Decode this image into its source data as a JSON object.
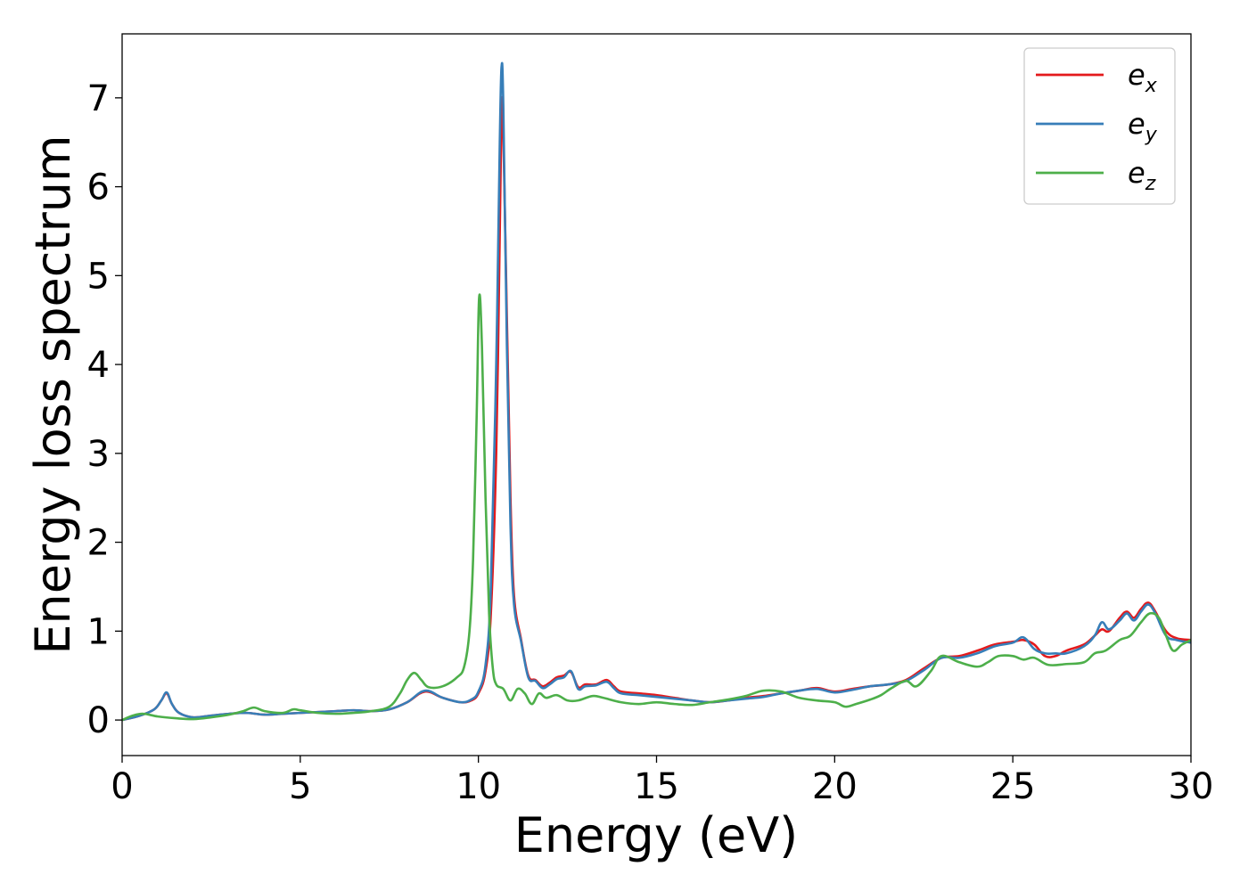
{
  "chart_data": {
    "type": "line",
    "title": "",
    "xlabel": "Energy (eV)",
    "ylabel": "Energy loss spectrum",
    "xlim": [
      0,
      30
    ],
    "ylim": [
      -0.4,
      7.72
    ],
    "xticks": [
      0,
      5,
      10,
      15,
      20,
      25,
      30
    ],
    "xtick_labels": [
      "0",
      "5",
      "10",
      "15",
      "20",
      "25",
      "30"
    ],
    "yticks": [
      0,
      1,
      2,
      3,
      4,
      5,
      6,
      7
    ],
    "ytick_labels": [
      "0",
      "1",
      "2",
      "3",
      "4",
      "5",
      "6",
      "7"
    ],
    "grid": false,
    "legend_position": "top-right",
    "series": [
      {
        "name": "e",
        "subscript": "x",
        "color": "#e41a1c",
        "x": [
          0,
          0.5,
          0.9,
          1.1,
          1.25,
          1.4,
          1.6,
          2.0,
          2.5,
          3.0,
          3.5,
          4.0,
          4.5,
          5.0,
          5.5,
          6.0,
          6.5,
          7.0,
          7.5,
          8.0,
          8.5,
          9.0,
          9.5,
          9.8,
          10.0,
          10.2,
          10.35,
          10.5,
          10.6,
          10.65,
          10.7,
          10.8,
          10.9,
          11.0,
          11.2,
          11.4,
          11.6,
          11.8,
          12.0,
          12.2,
          12.4,
          12.6,
          12.8,
          13.0,
          13.3,
          13.6,
          13.8,
          14.0,
          14.5,
          15.0,
          15.5,
          16.0,
          16.5,
          17.0,
          17.5,
          18.0,
          18.5,
          19.0,
          19.5,
          20.0,
          20.5,
          21.0,
          21.5,
          22.0,
          22.5,
          23.0,
          23.5,
          24.0,
          24.5,
          25.0,
          25.3,
          25.6,
          25.9,
          26.2,
          26.5,
          27.0,
          27.3,
          27.5,
          27.7,
          28.0,
          28.2,
          28.4,
          28.6,
          28.8,
          29.0,
          29.3,
          29.6,
          30.0
        ],
        "y": [
          0.0,
          0.05,
          0.12,
          0.22,
          0.3,
          0.18,
          0.08,
          0.03,
          0.05,
          0.07,
          0.08,
          0.06,
          0.07,
          0.08,
          0.09,
          0.1,
          0.11,
          0.1,
          0.12,
          0.2,
          0.32,
          0.25,
          0.2,
          0.22,
          0.3,
          0.55,
          1.2,
          3.0,
          5.5,
          6.9,
          6.6,
          4.5,
          2.5,
          1.4,
          0.9,
          0.5,
          0.45,
          0.38,
          0.42,
          0.48,
          0.5,
          0.54,
          0.37,
          0.4,
          0.4,
          0.45,
          0.38,
          0.32,
          0.3,
          0.28,
          0.25,
          0.22,
          0.2,
          0.22,
          0.25,
          0.27,
          0.3,
          0.33,
          0.36,
          0.32,
          0.35,
          0.38,
          0.4,
          0.45,
          0.58,
          0.7,
          0.72,
          0.78,
          0.85,
          0.88,
          0.9,
          0.85,
          0.72,
          0.72,
          0.78,
          0.85,
          0.95,
          1.02,
          1.0,
          1.15,
          1.22,
          1.15,
          1.25,
          1.32,
          1.22,
          1.0,
          0.92,
          0.9
        ]
      },
      {
        "name": "e",
        "subscript": "y",
        "color": "#377eb8",
        "x": [
          0,
          0.5,
          0.9,
          1.1,
          1.25,
          1.4,
          1.6,
          2.0,
          2.5,
          3.0,
          3.5,
          4.0,
          4.5,
          5.0,
          5.5,
          6.0,
          6.5,
          7.0,
          7.5,
          8.0,
          8.5,
          9.0,
          9.5,
          9.8,
          10.0,
          10.2,
          10.35,
          10.5,
          10.6,
          10.65,
          10.7,
          10.8,
          10.9,
          11.0,
          11.2,
          11.4,
          11.6,
          11.8,
          12.0,
          12.2,
          12.4,
          12.6,
          12.8,
          13.0,
          13.3,
          13.6,
          13.8,
          14.0,
          14.5,
          15.0,
          15.5,
          16.0,
          16.5,
          17.0,
          17.5,
          18.0,
          18.5,
          19.0,
          19.5,
          20.0,
          20.5,
          21.0,
          21.5,
          22.0,
          22.5,
          23.0,
          23.5,
          24.0,
          24.5,
          25.0,
          25.3,
          25.6,
          25.9,
          26.2,
          26.5,
          27.0,
          27.3,
          27.5,
          27.7,
          28.0,
          28.2,
          28.4,
          28.6,
          28.8,
          29.0,
          29.3,
          29.6,
          30.0
        ],
        "y": [
          0.0,
          0.05,
          0.12,
          0.22,
          0.31,
          0.18,
          0.08,
          0.03,
          0.05,
          0.07,
          0.08,
          0.06,
          0.07,
          0.08,
          0.09,
          0.1,
          0.11,
          0.1,
          0.12,
          0.2,
          0.33,
          0.25,
          0.2,
          0.23,
          0.32,
          0.62,
          1.5,
          4.0,
          6.5,
          7.35,
          6.9,
          4.2,
          2.2,
          1.3,
          0.88,
          0.48,
          0.44,
          0.36,
          0.4,
          0.46,
          0.48,
          0.55,
          0.35,
          0.38,
          0.39,
          0.43,
          0.36,
          0.3,
          0.28,
          0.26,
          0.24,
          0.22,
          0.2,
          0.22,
          0.24,
          0.26,
          0.3,
          0.33,
          0.35,
          0.31,
          0.34,
          0.38,
          0.4,
          0.44,
          0.56,
          0.7,
          0.7,
          0.75,
          0.83,
          0.87,
          0.93,
          0.8,
          0.75,
          0.75,
          0.75,
          0.83,
          0.95,
          1.1,
          1.02,
          1.12,
          1.2,
          1.12,
          1.22,
          1.3,
          1.2,
          0.95,
          0.9,
          0.87
        ]
      },
      {
        "name": "e",
        "subscript": "z",
        "color": "#4daf4a",
        "x": [
          0,
          0.3,
          0.6,
          1.0,
          1.5,
          2.0,
          2.5,
          3.0,
          3.4,
          3.7,
          4.0,
          4.5,
          4.8,
          5.0,
          5.5,
          6.0,
          6.5,
          7.0,
          7.5,
          7.8,
          8.0,
          8.2,
          8.4,
          8.6,
          9.0,
          9.4,
          9.6,
          9.75,
          9.85,
          9.95,
          10.02,
          10.1,
          10.2,
          10.3,
          10.4,
          10.5,
          10.7,
          10.9,
          11.1,
          11.3,
          11.5,
          11.7,
          11.9,
          12.2,
          12.5,
          12.8,
          13.2,
          13.5,
          14.0,
          14.5,
          15.0,
          15.5,
          16.0,
          16.5,
          17.0,
          17.5,
          18.0,
          18.5,
          19.0,
          19.5,
          20.0,
          20.3,
          20.6,
          21.0,
          21.3,
          21.6,
          22.0,
          22.3,
          22.7,
          23.0,
          23.5,
          24.0,
          24.3,
          24.6,
          25.0,
          25.3,
          25.6,
          26.0,
          26.5,
          27.0,
          27.3,
          27.6,
          28.0,
          28.3,
          28.6,
          28.85,
          29.1,
          29.3,
          29.5,
          29.75,
          30.0
        ],
        "y": [
          0.0,
          0.05,
          0.07,
          0.04,
          0.02,
          0.01,
          0.03,
          0.06,
          0.1,
          0.14,
          0.1,
          0.08,
          0.12,
          0.11,
          0.08,
          0.07,
          0.08,
          0.1,
          0.15,
          0.3,
          0.45,
          0.53,
          0.45,
          0.37,
          0.38,
          0.48,
          0.6,
          1.0,
          1.8,
          3.4,
          4.75,
          4.2,
          2.5,
          1.2,
          0.6,
          0.4,
          0.35,
          0.22,
          0.35,
          0.3,
          0.18,
          0.3,
          0.25,
          0.28,
          0.22,
          0.22,
          0.27,
          0.25,
          0.2,
          0.18,
          0.2,
          0.18,
          0.17,
          0.2,
          0.23,
          0.27,
          0.33,
          0.32,
          0.25,
          0.22,
          0.2,
          0.15,
          0.18,
          0.23,
          0.28,
          0.36,
          0.44,
          0.38,
          0.55,
          0.72,
          0.65,
          0.6,
          0.65,
          0.72,
          0.72,
          0.68,
          0.7,
          0.62,
          0.63,
          0.65,
          0.75,
          0.78,
          0.9,
          0.95,
          1.1,
          1.2,
          1.15,
          0.95,
          0.78,
          0.85,
          0.9
        ]
      }
    ]
  }
}
